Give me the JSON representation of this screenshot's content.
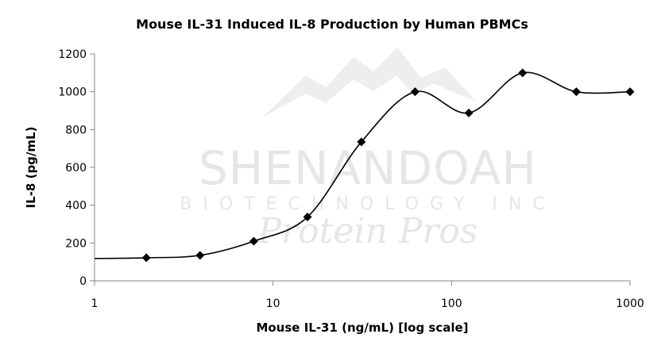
{
  "chart_data": {
    "type": "line",
    "title": "Mouse IL-31 Induced IL-8 Production by Human PBMCs",
    "xlabel": "Mouse IL-31 (ng/mL) [log scale]",
    "ylabel": "IL-8 (pg/mL)",
    "x_scale": "log",
    "xlim": [
      1,
      1000
    ],
    "ylim": [
      0,
      1200
    ],
    "x_ticks": [
      1,
      10,
      100,
      1000
    ],
    "x_tick_labels": [
      "1",
      "10",
      "100",
      "1000"
    ],
    "y_ticks": [
      0,
      200,
      400,
      600,
      800,
      1000,
      1200
    ],
    "y_tick_labels": [
      "0",
      "200",
      "400",
      "600",
      "800",
      "1000",
      "1200"
    ],
    "grid": false,
    "legend": "none",
    "line_color": "#000000",
    "marker": "diamond",
    "smooth": true,
    "series": [
      {
        "x": [
          1,
          1.95,
          3.9,
          7.8,
          15.6,
          31.25,
          62.5,
          125,
          250,
          500,
          1000
        ],
        "y": [
          118,
          122,
          135,
          210,
          338,
          735,
          1000,
          888,
          1100,
          1000,
          1000
        ],
        "markers": [
          false,
          true,
          true,
          true,
          true,
          true,
          true,
          true,
          true,
          true,
          true
        ]
      }
    ]
  },
  "watermark": {
    "line1": "SHENANDOAH",
    "line2": "BIOTECHNOLOGY INC",
    "line3": "Protein Pros",
    "color": "#e6e6e6"
  }
}
